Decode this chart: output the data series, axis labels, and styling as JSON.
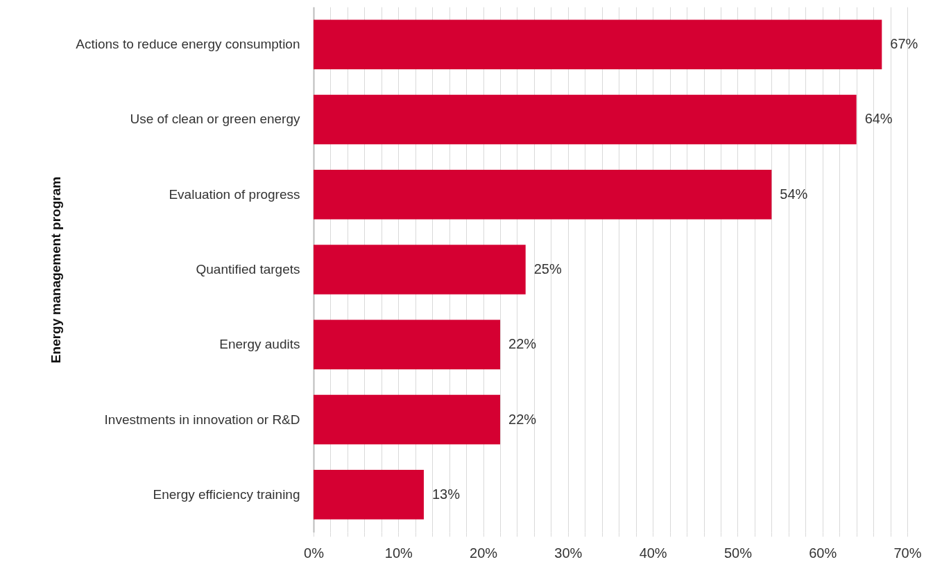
{
  "chart_data": {
    "type": "bar",
    "orientation": "horizontal",
    "ylabel": "Energy management program",
    "categories": [
      "Actions to reduce energy consumption",
      "Use of clean or green energy",
      "Evaluation of progress",
      "Quantified targets",
      "Energy audits",
      "Investments in innovation or R&D",
      "Energy efficiency training"
    ],
    "values": [
      67,
      64,
      54,
      25,
      22,
      22,
      13
    ],
    "value_labels": [
      "67%",
      "64%",
      "54%",
      "25%",
      "22%",
      "22%",
      "13%"
    ],
    "color": "#d50032",
    "xlim": [
      0,
      70
    ],
    "xticks": [
      {
        "value": 0,
        "label": "0%"
      },
      {
        "value": 2,
        "label": null
      },
      {
        "value": 4,
        "label": null
      },
      {
        "value": 6,
        "label": null
      },
      {
        "value": 8,
        "label": null
      },
      {
        "value": 10,
        "label": "10%"
      },
      {
        "value": 12,
        "label": null
      },
      {
        "value": 14,
        "label": null
      },
      {
        "value": 16,
        "label": null
      },
      {
        "value": 18,
        "label": null
      },
      {
        "value": 20,
        "label": "20%"
      },
      {
        "value": 22,
        "label": null
      },
      {
        "value": 24,
        "label": null
      },
      {
        "value": 26,
        "label": null
      },
      {
        "value": 28,
        "label": null
      },
      {
        "value": 30,
        "label": "30%"
      },
      {
        "value": 32,
        "label": null
      },
      {
        "value": 34,
        "label": null
      },
      {
        "value": 36,
        "label": null
      },
      {
        "value": 38,
        "label": null
      },
      {
        "value": 40,
        "label": "40%"
      },
      {
        "value": 42,
        "label": null
      },
      {
        "value": 44,
        "label": null
      },
      {
        "value": 46,
        "label": null
      },
      {
        "value": 48,
        "label": null
      },
      {
        "value": 50,
        "label": "50%"
      },
      {
        "value": 52,
        "label": null
      },
      {
        "value": 54,
        "label": null
      },
      {
        "value": 56,
        "label": null
      },
      {
        "value": 58,
        "label": null
      },
      {
        "value": 60,
        "label": "60%"
      },
      {
        "value": 62,
        "label": null
      },
      {
        "value": 64,
        "label": null
      },
      {
        "value": 66,
        "label": null
      },
      {
        "value": 68,
        "label": null
      },
      {
        "value": 70,
        "label": "70%"
      }
    ],
    "grid": "x"
  }
}
